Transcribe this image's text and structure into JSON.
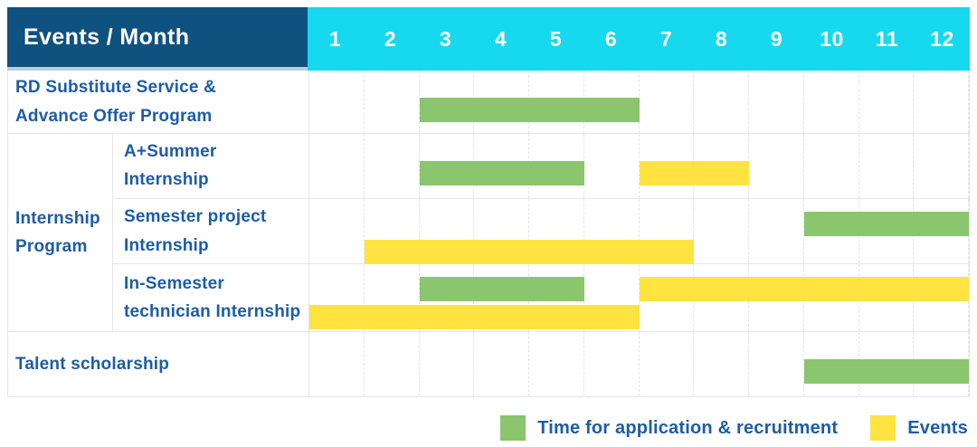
{
  "header": {
    "label": "Events / Month",
    "months": [
      "1",
      "2",
      "3",
      "4",
      "5",
      "6",
      "7",
      "8",
      "9",
      "10",
      "11",
      "12"
    ]
  },
  "group": {
    "label": "Internship\nProgram"
  },
  "rows": [
    {
      "label": "RD Substitute Service &\nAdvance Offer Program",
      "bars": [
        {
          "type": "green",
          "start": 3,
          "end": 6,
          "line": "single"
        }
      ]
    },
    {
      "label": "A+Summer\nInternship",
      "bars": [
        {
          "type": "green",
          "start": 3,
          "end": 5,
          "line": "single"
        },
        {
          "type": "yellow",
          "start": 7,
          "end": 8,
          "line": "single"
        }
      ]
    },
    {
      "label": "Semester project\nInternship",
      "bars": [
        {
          "type": "green",
          "start": 10,
          "end": 12,
          "line": "top"
        },
        {
          "type": "yellow",
          "start": 2,
          "end": 7,
          "line": "bottom"
        }
      ]
    },
    {
      "label": "In-Semester\ntechnician Internship",
      "bars": [
        {
          "type": "green",
          "start": 3,
          "end": 5,
          "line": "top"
        },
        {
          "type": "yellow",
          "start": 7,
          "end": 12,
          "line": "top"
        },
        {
          "type": "yellow",
          "start": 1,
          "end": 6,
          "line": "bottom"
        }
      ]
    },
    {
      "label": "Talent scholarship",
      "bars": [
        {
          "type": "green",
          "start": 10,
          "end": 12,
          "line": "single"
        }
      ]
    }
  ],
  "legend": [
    {
      "type": "green",
      "label": "Time for application & recruitment"
    },
    {
      "type": "yellow",
      "label": "Events"
    }
  ],
  "colors": {
    "header_bg": "#0f5280",
    "months_bg": "#16d9f0",
    "green": "#8bc56d",
    "yellow": "#ffe340",
    "label_text": "#1d5ca7",
    "header_text": "#ffffff",
    "grid_border": "#e6e6e6"
  },
  "chart_data": {
    "type": "bar",
    "subtype": "gantt",
    "title": "Events / Month",
    "xlabel": "Month",
    "x_ticks": [
      1,
      2,
      3,
      4,
      5,
      6,
      7,
      8,
      9,
      10,
      11,
      12
    ],
    "x_range": [
      1,
      12
    ],
    "grid": true,
    "legend_position": "bottom-right",
    "categories": [
      "RD Substitute Service & Advance Offer Program",
      "Internship Program / A+Summer Internship",
      "Internship Program / Semester project Internship",
      "Internship Program / In-Semester technician Internship",
      "Talent scholarship"
    ],
    "series": [
      {
        "name": "Time for application & recruitment",
        "color": "#8bc56d",
        "spans": [
          {
            "category": "RD Substitute Service & Advance Offer Program",
            "start_month": 3,
            "end_month": 6
          },
          {
            "category": "Internship Program / A+Summer Internship",
            "start_month": 3,
            "end_month": 5
          },
          {
            "category": "Internship Program / Semester project Internship",
            "start_month": 10,
            "end_month": 12
          },
          {
            "category": "Internship Program / In-Semester technician Internship",
            "start_month": 3,
            "end_month": 5
          },
          {
            "category": "Talent scholarship",
            "start_month": 10,
            "end_month": 12
          }
        ]
      },
      {
        "name": "Events",
        "color": "#ffe340",
        "spans": [
          {
            "category": "Internship Program / A+Summer Internship",
            "start_month": 7,
            "end_month": 8
          },
          {
            "category": "Internship Program / Semester project Internship",
            "start_month": 2,
            "end_month": 7
          },
          {
            "category": "Internship Program / In-Semester technician Internship",
            "start_month": 7,
            "end_month": 12
          },
          {
            "category": "Internship Program / In-Semester technician Internship",
            "start_month": 1,
            "end_month": 6
          }
        ]
      }
    ]
  }
}
